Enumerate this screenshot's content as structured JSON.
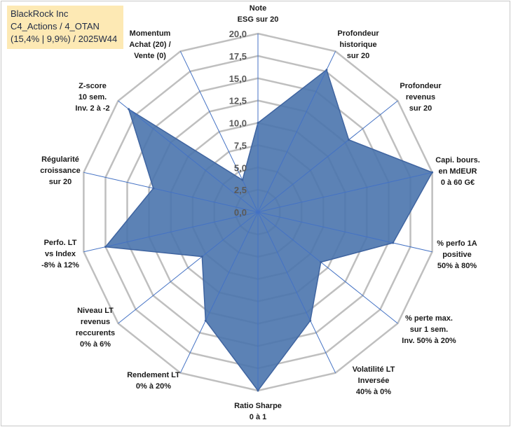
{
  "header": {
    "company": "BlackRock Inc",
    "category": "C4_Actions / 4_OTAN",
    "details": "(15,4% | 9,9%) / 2025W44"
  },
  "colors": {
    "fill": "#4a74ad",
    "stroke": "#3f64a0",
    "grid": "#bfbfbf",
    "spoke": "#4472c4",
    "title_bg": "#fde9b4"
  },
  "chart_data": {
    "type": "radar",
    "title": "",
    "rmin": 0,
    "rmax": 20,
    "ticks": [
      "0,0",
      "2,5",
      "5,0",
      "7,5",
      "10,0",
      "12,5",
      "15,0",
      "17,5",
      "20,0"
    ],
    "axes": [
      {
        "label": [
          "Note",
          "ESG sur 20"
        ],
        "value": 10
      },
      {
        "label": [
          "Profondeur",
          "historique",
          "sur 20"
        ],
        "value": 17.7
      },
      {
        "label": [
          "Profondeur",
          "revenus",
          "sur 20"
        ],
        "value": 13
      },
      {
        "label": [
          "Capi. bours.",
          "en MdEUR",
          "0 à 60 G€"
        ],
        "value": 20
      },
      {
        "label": [
          "% perfo 1A",
          "positive",
          "50% à 80%"
        ],
        "value": 15.5
      },
      {
        "label": [
          "% perte max.",
          "sur 1 sem.",
          "Inv. 50% à 20%"
        ],
        "value": 9
      },
      {
        "label": [
          "Volatilité LT",
          "Inversée",
          "40% à 0%"
        ],
        "value": 13.5
      },
      {
        "label": [
          "Ratio Sharpe",
          "0 à 1"
        ],
        "value": 20
      },
      {
        "label": [
          "Rendement LT",
          "0% à 20%"
        ],
        "value": 13.5
      },
      {
        "label": [
          "Niveau LT",
          "revenus",
          "reccurents",
          "0% à 6%"
        ],
        "value": 8
      },
      {
        "label": [
          "Perfo. LT",
          "vs Index",
          "-8% à 12%"
        ],
        "value": 17.5
      },
      {
        "label": [
          "Régularité",
          "croissance",
          "sur 20"
        ],
        "value": 12
      },
      {
        "label": [
          "Z-score",
          "10 sem.",
          "Inv. 2 à -2"
        ],
        "value": 18.5
      },
      {
        "label": [
          "Momentum",
          "Achat (20) /",
          "Vente (0)"
        ],
        "value": 4
      }
    ]
  }
}
